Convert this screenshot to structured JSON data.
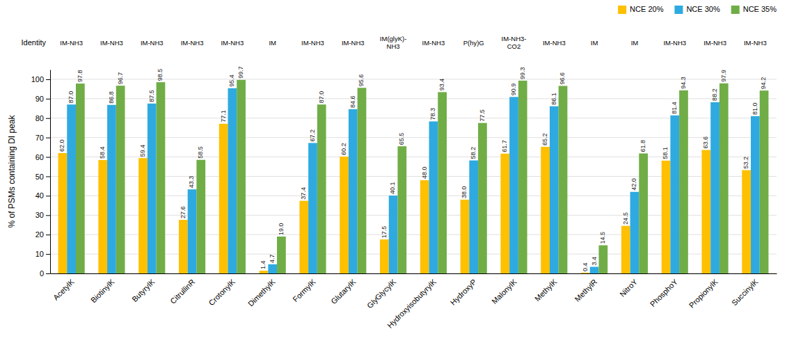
{
  "chart_data": {
    "type": "bar",
    "categories": [
      "AcetylK",
      "BiotinylK",
      "ButyrylK",
      "CitrullinR",
      "CrotonylK",
      "DimethylK",
      "FormylK",
      "GlutarylK",
      "GlyGlycylK",
      "HydroxyisobutyrylK",
      "HydroxyP",
      "MalonylK",
      "MethylK",
      "MethylR",
      "NitroY",
      "PhosphoY",
      "PropionylK",
      "SuccinylK"
    ],
    "series": [
      {
        "name": "NCE 20%",
        "color": "#FFC000",
        "values": [
          62.0,
          58.4,
          59.4,
          27.6,
          77.1,
          1.4,
          37.4,
          60.2,
          17.5,
          48.0,
          38.0,
          61.7,
          65.2,
          0.4,
          24.5,
          58.1,
          63.6,
          53.2
        ],
        "value_labels": [
          "62.0",
          "58.4",
          "59.4",
          "27.6",
          "77.1",
          "1.4",
          "37.4",
          "60.2",
          "17.5",
          "48.0",
          "38.0",
          "61.7",
          "65.2",
          "0.4",
          "24.5",
          "58.1",
          "63.6",
          "53.2"
        ]
      },
      {
        "name": "NCE 30%",
        "color": "#2EAAE1",
        "values": [
          87.0,
          86.8,
          87.5,
          43.3,
          95.4,
          4.7,
          67.2,
          84.6,
          40.1,
          78.3,
          58.2,
          90.9,
          86.1,
          3.4,
          42.0,
          81.4,
          88.2,
          81.0
        ],
        "value_labels": [
          "87.0",
          "86.8",
          "87.5",
          "43.3",
          "95.4",
          "4.7",
          "67.2",
          "84.6",
          "40.1",
          "78.3",
          "58.2",
          "90.9",
          "86.1",
          "3.4",
          "42.0",
          "81.4",
          "88.2",
          "81.0"
        ]
      },
      {
        "name": "NCE 35%",
        "color": "#70AD47",
        "values": [
          97.8,
          96.7,
          98.5,
          58.5,
          99.7,
          19.0,
          87.0,
          95.6,
          65.5,
          93.4,
          77.5,
          99.3,
          96.6,
          14.5,
          61.8,
          94.3,
          97.9,
          94.2
        ],
        "value_labels": [
          "97.8",
          "96.7",
          "98.5",
          "58.5",
          "99.7",
          "19.0",
          "87.0",
          "95.6",
          "65.5",
          "93.4",
          "77.5",
          "99.3",
          "96.6",
          "14.5",
          "61.8",
          "94.3",
          "97.9",
          "94.2"
        ]
      }
    ],
    "y_label": "% of PSMs containing DI peak",
    "annotations": {
      "label": "Identity",
      "texts": [
        "IM-NH3",
        "IM-NH3",
        "IM-NH3",
        "IM-NH3",
        "IM-NH3",
        "IM",
        "IM-NH3",
        "IM-NH3",
        "IM(glyK)-\nNH3",
        "IM-NH3",
        "P(hy)G",
        "IM-NH3-\nCO2",
        "IM-NH3",
        "IM",
        "IM",
        "IM-NH3",
        "IM-NH3",
        "IM-NH3"
      ]
    },
    "ylim": [
      0,
      105
    ],
    "yticks": [
      0,
      10,
      20,
      30,
      40,
      50,
      60,
      70,
      80,
      90,
      100
    ],
    "grid": true,
    "legend": "upper right",
    "data_labels": true
  }
}
